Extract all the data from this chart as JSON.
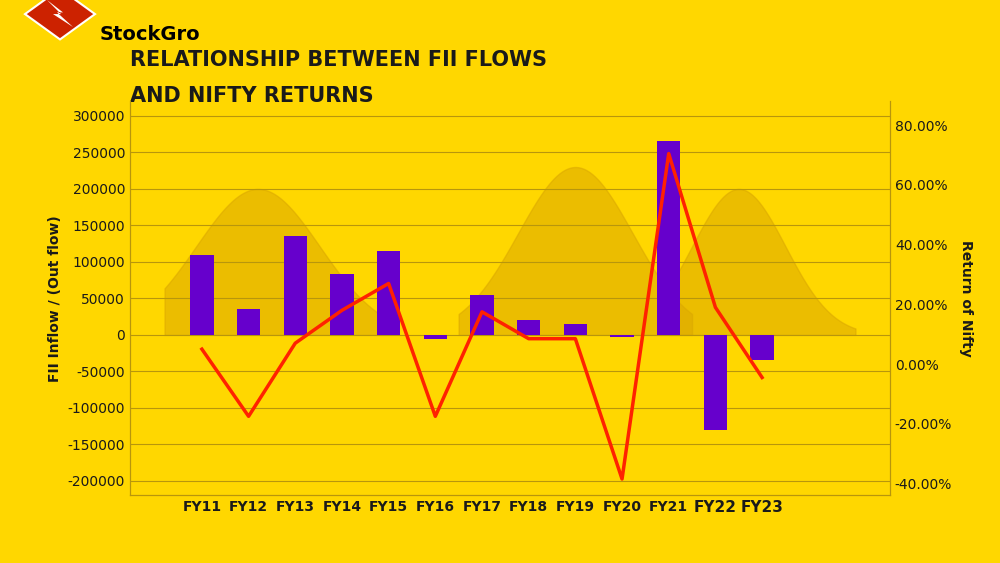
{
  "categories": [
    "FY11",
    "FY12",
    "FY13",
    "FY14",
    "FY15",
    "FY16",
    "FY17",
    "FY18",
    "FY19",
    "FY20",
    "FY21",
    "FY22",
    "FY23"
  ],
  "fii_flows": [
    110000,
    36000,
    136000,
    83000,
    115000,
    -5000,
    55000,
    20000,
    15000,
    -3000,
    265000,
    -130000,
    -35000
  ],
  "nifty_returns": [
    0.05,
    -0.175,
    0.07,
    0.18,
    0.27,
    -0.175,
    0.175,
    0.085,
    0.085,
    -0.385,
    0.705,
    0.19,
    -0.045
  ],
  "bar_color": "#6600CC",
  "line_color": "#FF2200",
  "bg_color": "#FFD700",
  "blob_color": "#DBA800",
  "grid_color": "#B8960C",
  "text_color": "#1a1a1a",
  "title_line1": "RELATIONSHIP BETWEEN FII FLOWS",
  "title_line2": "AND NIFTY RETURNS",
  "ylabel_left": "FII Inflow / (Out flow)",
  "ylabel_right": "Return of Nifty",
  "ylim_left": [
    -220000,
    320000
  ],
  "ylim_right": [
    -0.44,
    0.88
  ],
  "yticks_left": [
    -200000,
    -150000,
    -100000,
    -50000,
    0,
    50000,
    100000,
    150000,
    200000,
    250000,
    300000
  ],
  "yticks_right": [
    -0.4,
    -0.2,
    0.0,
    0.2,
    0.4,
    0.6,
    0.8
  ],
  "title_fontsize": 15,
  "axis_fontsize": 10,
  "tick_fontsize": 10,
  "bold_labels": [
    "FY22",
    "FY23"
  ]
}
